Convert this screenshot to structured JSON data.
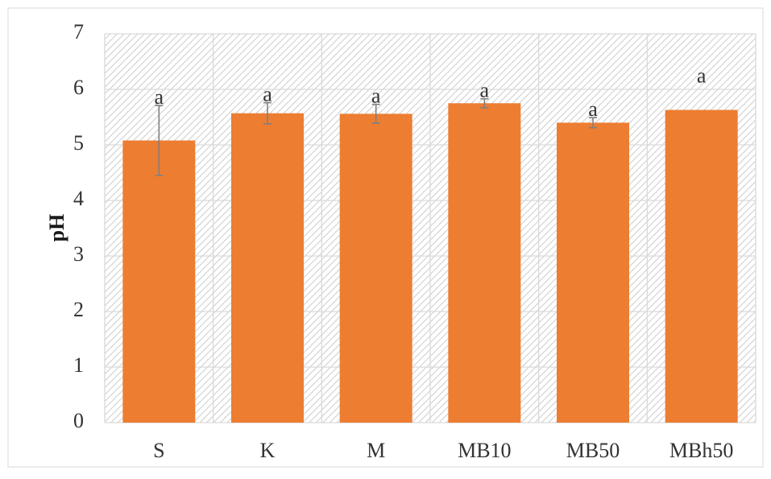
{
  "chart_data": {
    "type": "bar",
    "title": "",
    "xlabel": "",
    "ylabel": "pH",
    "ylim": [
      0,
      7
    ],
    "yticks": [
      0,
      1,
      2,
      3,
      4,
      5,
      6,
      7
    ],
    "grid": true,
    "legend": "none",
    "categories": [
      "S",
      "K",
      "M",
      "MB10",
      "MB50",
      "MBh50"
    ],
    "values": [
      5.08,
      5.57,
      5.56,
      5.75,
      5.4,
      5.63
    ],
    "error": [
      0.63,
      0.19,
      0.17,
      0.08,
      0.09,
      null
    ],
    "significance_labels": [
      "a",
      "a",
      "a",
      "a",
      "a",
      "a"
    ],
    "colors": {
      "bar": "#ED7D31",
      "error_bar": "#808080",
      "grid": "#D9D9D9",
      "hatch": "#D0D0D0"
    }
  }
}
